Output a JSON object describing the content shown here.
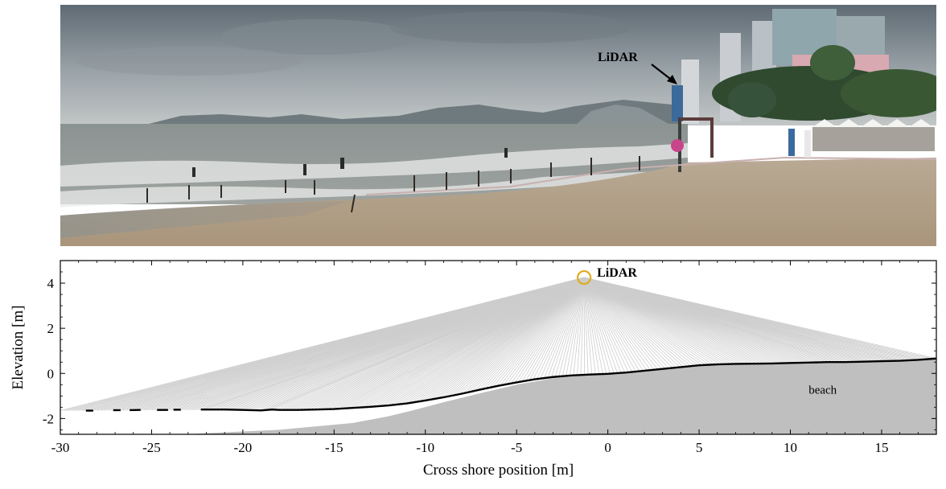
{
  "photo": {
    "annotation": "LiDAR"
  },
  "chart_data": {
    "type": "line",
    "xlabel": "Cross shore position [m]",
    "ylabel": "Elevation [m]",
    "xlim": [
      -30,
      18
    ],
    "ylim": [
      -2.7,
      5
    ],
    "xticks": [
      -30,
      -25,
      -20,
      -15,
      -10,
      -5,
      0,
      5,
      10,
      15
    ],
    "yticks": [
      -2,
      0,
      2,
      4
    ],
    "grid": false,
    "lidar": {
      "x": -1.3,
      "y": 4.25,
      "label": "LiDAR"
    },
    "region_label": {
      "text": "beach",
      "x": 11,
      "y": -0.9
    },
    "profile": {
      "x": [
        -22.3,
        -21,
        -20,
        -19,
        -18.4,
        -18,
        -17,
        -16,
        -15,
        -14,
        -13,
        -12,
        -11,
        -10,
        -9,
        -8,
        -7,
        -6,
        -5,
        -4,
        -3,
        -2,
        -1,
        0,
        1,
        2,
        3,
        4,
        5,
        6,
        7,
        8,
        9,
        10,
        11,
        12,
        13,
        14,
        15,
        16,
        17,
        18
      ],
      "y": [
        -1.6,
        -1.6,
        -1.62,
        -1.64,
        -1.6,
        -1.62,
        -1.62,
        -1.6,
        -1.58,
        -1.53,
        -1.48,
        -1.42,
        -1.33,
        -1.2,
        -1.06,
        -0.9,
        -0.72,
        -0.55,
        -0.4,
        -0.26,
        -0.16,
        -0.09,
        -0.05,
        -0.02,
        0.04,
        0.12,
        0.2,
        0.28,
        0.36,
        0.4,
        0.42,
        0.43,
        0.44,
        0.46,
        0.48,
        0.5,
        0.5,
        0.52,
        0.54,
        0.56,
        0.6,
        0.66
      ]
    },
    "profile_dashes": [
      {
        "x": [
          -28.6,
          -28.2
        ],
        "y": [
          -1.65,
          -1.65
        ]
      },
      {
        "x": [
          -27.1,
          -26.7
        ],
        "y": [
          -1.63,
          -1.63
        ]
      },
      {
        "x": [
          -26.2,
          -25.6
        ],
        "y": [
          -1.63,
          -1.62
        ]
      },
      {
        "x": [
          -24.7,
          -24.1
        ],
        "y": [
          -1.62,
          -1.62
        ]
      },
      {
        "x": [
          -23.8,
          -23.4
        ],
        "y": [
          -1.61,
          -1.61
        ]
      }
    ],
    "sand": {
      "x": [
        -23.3,
        -18,
        -14,
        -12,
        -10.5,
        -9,
        -7,
        -5,
        -3,
        -2,
        -1,
        0,
        1,
        2,
        3,
        4,
        5,
        6,
        7,
        8,
        9,
        10,
        11,
        12,
        13,
        14,
        15,
        16,
        17,
        18
      ],
      "y": [
        -2.7,
        -2.5,
        -2.2,
        -1.9,
        -1.6,
        -1.28,
        -0.88,
        -0.5,
        -0.22,
        -0.13,
        -0.07,
        -0.03,
        0.03,
        0.1,
        0.18,
        0.26,
        0.34,
        0.38,
        0.4,
        0.41,
        0.42,
        0.44,
        0.46,
        0.48,
        0.49,
        0.51,
        0.53,
        0.55,
        0.59,
        0.65
      ]
    },
    "ray_fan": {
      "x_start": -30,
      "x_end": 18,
      "count": 240
    }
  }
}
